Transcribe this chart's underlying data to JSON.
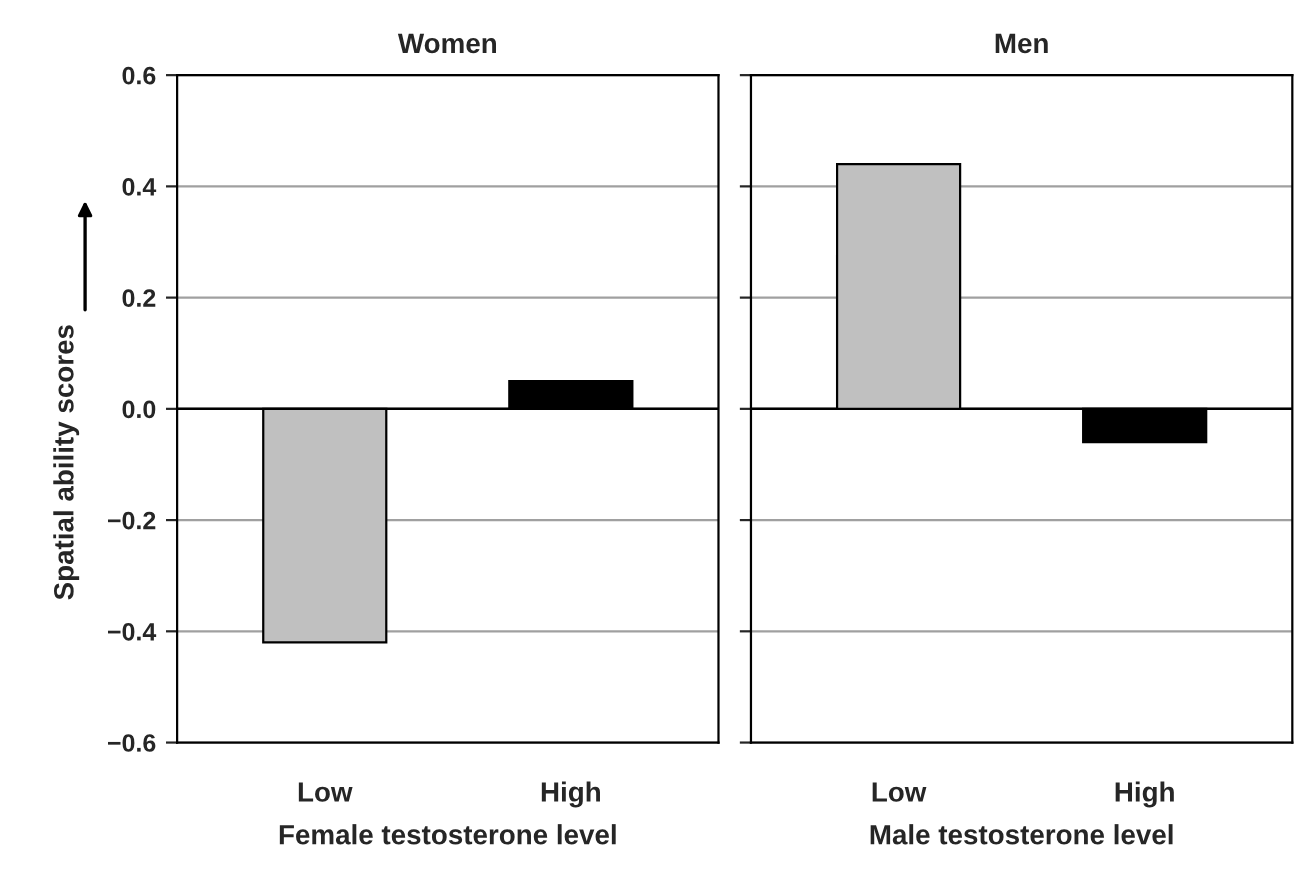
{
  "chart_data": [
    {
      "type": "bar",
      "title": "Women",
      "xlabel": "Female testosterone level",
      "ylabel": "Spatial ability scores",
      "categories": [
        "Low",
        "High"
      ],
      "values": [
        -0.42,
        0.05
      ],
      "colors": [
        "#c0c0c0",
        "#000000"
      ],
      "ylim": [
        -0.6,
        0.6
      ],
      "yticks": [
        {
          "value": -0.6,
          "label": "−0.6"
        },
        {
          "value": -0.4,
          "label": "−0.4"
        },
        {
          "value": -0.2,
          "label": "−0.2"
        },
        {
          "value": 0,
          "label": "0.0"
        },
        {
          "value": 0.2,
          "label": "0.2"
        },
        {
          "value": 0.4,
          "label": "0.4"
        },
        {
          "value": 0.6,
          "label": "0.6"
        }
      ],
      "grid": "y",
      "ref_lines": [
        {
          "axis": "y",
          "value": 0,
          "color": "#000000"
        }
      ]
    },
    {
      "type": "bar",
      "title": "Men",
      "xlabel": "Male testosterone level",
      "categories": [
        "Low",
        "High"
      ],
      "values": [
        0.44,
        -0.06
      ],
      "colors": [
        "#c0c0c0",
        "#000000"
      ],
      "ylim": [
        -0.6,
        0.6
      ],
      "yticks": [
        -0.6,
        -0.4,
        -0.2,
        0,
        0.2,
        0.4,
        0.6
      ],
      "grid": "y",
      "tick_labels": "x",
      "ref_lines": [
        {
          "axis": "y",
          "value": 0,
          "color": "#000000"
        }
      ]
    }
  ]
}
